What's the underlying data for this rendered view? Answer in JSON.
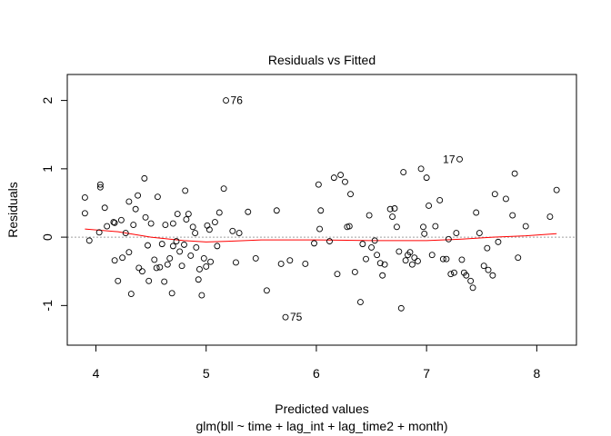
{
  "chart_data": {
    "type": "scatter",
    "title": "Residuals vs Fitted",
    "xlabel": "Predicted values",
    "subtitle": "glm(bll ~ time + lag_int + lag_time2 + month)",
    "ylabel": "Residuals",
    "xlim": [
      3.74,
      8.36
    ],
    "ylim": [
      -1.58,
      2.38
    ],
    "xticks": [
      4,
      5,
      6,
      7,
      8
    ],
    "xtick_labels": [
      "4",
      "5",
      "6",
      "7",
      "8"
    ],
    "yticks": [
      -1,
      0,
      1,
      2
    ],
    "ytick_labels": [
      "-1",
      "0",
      "1",
      "2"
    ],
    "grid": false,
    "colors": {
      "points": "#000000",
      "smooth": "#ff0000",
      "zero_line": "#a0a0a0"
    },
    "points": [
      {
        "x": 3.9,
        "y": 0.58
      },
      {
        "x": 3.9,
        "y": 0.35
      },
      {
        "x": 3.94,
        "y": -0.05
      },
      {
        "x": 4.04,
        "y": 0.77
      },
      {
        "x": 4.04,
        "y": 0.73
      },
      {
        "x": 4.03,
        "y": 0.07
      },
      {
        "x": 4.08,
        "y": 0.43
      },
      {
        "x": 4.1,
        "y": 0.16
      },
      {
        "x": 4.16,
        "y": 0.22
      },
      {
        "x": 4.17,
        "y": 0.21
      },
      {
        "x": 4.17,
        "y": -0.34
      },
      {
        "x": 4.2,
        "y": -0.64
      },
      {
        "x": 4.23,
        "y": 0.25
      },
      {
        "x": 4.24,
        "y": -0.3
      },
      {
        "x": 4.27,
        "y": 0.06
      },
      {
        "x": 4.3,
        "y": 0.52
      },
      {
        "x": 4.3,
        "y": -0.22
      },
      {
        "x": 4.32,
        "y": -0.83
      },
      {
        "x": 4.34,
        "y": 0.18
      },
      {
        "x": 4.36,
        "y": 0.41
      },
      {
        "x": 4.38,
        "y": 0.61
      },
      {
        "x": 4.39,
        "y": -0.45
      },
      {
        "x": 4.42,
        "y": -0.5
      },
      {
        "x": 4.44,
        "y": 0.86
      },
      {
        "x": 4.45,
        "y": 0.29
      },
      {
        "x": 4.47,
        "y": -0.12
      },
      {
        "x": 4.48,
        "y": -0.64
      },
      {
        "x": 4.5,
        "y": 0.2
      },
      {
        "x": 4.53,
        "y": -0.33
      },
      {
        "x": 4.55,
        "y": -0.45
      },
      {
        "x": 4.56,
        "y": 0.59
      },
      {
        "x": 4.58,
        "y": -0.44
      },
      {
        "x": 4.6,
        "y": -0.1
      },
      {
        "x": 4.62,
        "y": -0.65
      },
      {
        "x": 4.63,
        "y": 0.18
      },
      {
        "x": 4.65,
        "y": -0.4
      },
      {
        "x": 4.67,
        "y": -0.31
      },
      {
        "x": 4.69,
        "y": -0.82
      },
      {
        "x": 4.7,
        "y": 0.2
      },
      {
        "x": 4.7,
        "y": -0.13
      },
      {
        "x": 4.73,
        "y": -0.06
      },
      {
        "x": 4.74,
        "y": 0.34
      },
      {
        "x": 4.76,
        "y": -0.21
      },
      {
        "x": 4.78,
        "y": -0.42
      },
      {
        "x": 4.8,
        "y": -0.11
      },
      {
        "x": 4.81,
        "y": 0.68
      },
      {
        "x": 4.82,
        "y": 0.26
      },
      {
        "x": 4.84,
        "y": 0.34
      },
      {
        "x": 4.86,
        "y": -0.27
      },
      {
        "x": 4.88,
        "y": 0.15
      },
      {
        "x": 4.9,
        "y": 0.06
      },
      {
        "x": 4.91,
        "y": -0.15
      },
      {
        "x": 4.93,
        "y": -0.62
      },
      {
        "x": 4.94,
        "y": -0.47
      },
      {
        "x": 4.96,
        "y": -0.85
      },
      {
        "x": 4.98,
        "y": -0.31
      },
      {
        "x": 5.0,
        "y": -0.43
      },
      {
        "x": 5.01,
        "y": 0.17
      },
      {
        "x": 5.03,
        "y": 0.11
      },
      {
        "x": 5.04,
        "y": -0.36
      },
      {
        "x": 5.08,
        "y": 0.22
      },
      {
        "x": 5.1,
        "y": -0.13
      },
      {
        "x": 5.12,
        "y": 0.36
      },
      {
        "x": 5.16,
        "y": 0.71
      },
      {
        "x": 5.18,
        "y": 2.0
      },
      {
        "x": 5.24,
        "y": 0.09
      },
      {
        "x": 5.27,
        "y": -0.37
      },
      {
        "x": 5.3,
        "y": 0.06
      },
      {
        "x": 5.38,
        "y": 0.37
      },
      {
        "x": 5.45,
        "y": -0.31
      },
      {
        "x": 5.55,
        "y": -0.78
      },
      {
        "x": 5.64,
        "y": 0.39
      },
      {
        "x": 5.68,
        "y": -0.39
      },
      {
        "x": 5.72,
        "y": -1.17
      },
      {
        "x": 5.76,
        "y": -0.34
      },
      {
        "x": 5.9,
        "y": -0.39
      },
      {
        "x": 5.98,
        "y": -0.09
      },
      {
        "x": 6.02,
        "y": 0.77
      },
      {
        "x": 6.03,
        "y": 0.12
      },
      {
        "x": 6.04,
        "y": 0.39
      },
      {
        "x": 6.12,
        "y": -0.06
      },
      {
        "x": 6.16,
        "y": 0.87
      },
      {
        "x": 6.19,
        "y": -0.54
      },
      {
        "x": 6.22,
        "y": 0.91
      },
      {
        "x": 6.26,
        "y": 0.81
      },
      {
        "x": 6.28,
        "y": 0.15
      },
      {
        "x": 6.3,
        "y": 0.16
      },
      {
        "x": 6.31,
        "y": 0.63
      },
      {
        "x": 6.35,
        "y": -0.51
      },
      {
        "x": 6.4,
        "y": -0.95
      },
      {
        "x": 6.42,
        "y": -0.1
      },
      {
        "x": 6.45,
        "y": -0.32
      },
      {
        "x": 6.48,
        "y": 0.32
      },
      {
        "x": 6.5,
        "y": -0.15
      },
      {
        "x": 6.53,
        "y": -0.05
      },
      {
        "x": 6.55,
        "y": -0.26
      },
      {
        "x": 6.58,
        "y": -0.38
      },
      {
        "x": 6.6,
        "y": -0.56
      },
      {
        "x": 6.62,
        "y": -0.4
      },
      {
        "x": 6.67,
        "y": 0.41
      },
      {
        "x": 6.69,
        "y": 0.3
      },
      {
        "x": 6.71,
        "y": 0.42
      },
      {
        "x": 6.73,
        "y": 0.15
      },
      {
        "x": 6.75,
        "y": -0.21
      },
      {
        "x": 6.77,
        "y": -1.04
      },
      {
        "x": 6.79,
        "y": 0.95
      },
      {
        "x": 6.81,
        "y": -0.34
      },
      {
        "x": 6.83,
        "y": -0.26
      },
      {
        "x": 6.85,
        "y": -0.22
      },
      {
        "x": 6.87,
        "y": -0.4
      },
      {
        "x": 6.89,
        "y": -0.3
      },
      {
        "x": 6.92,
        "y": -0.35
      },
      {
        "x": 6.95,
        "y": 1.0
      },
      {
        "x": 6.97,
        "y": 0.15
      },
      {
        "x": 6.98,
        "y": 0.05
      },
      {
        "x": 7.0,
        "y": 0.87
      },
      {
        "x": 7.02,
        "y": 0.46
      },
      {
        "x": 7.05,
        "y": -0.26
      },
      {
        "x": 7.08,
        "y": 0.16
      },
      {
        "x": 7.12,
        "y": 0.54
      },
      {
        "x": 7.15,
        "y": -0.32
      },
      {
        "x": 7.18,
        "y": -0.32
      },
      {
        "x": 7.2,
        "y": -0.03
      },
      {
        "x": 7.22,
        "y": -0.54
      },
      {
        "x": 7.25,
        "y": -0.52
      },
      {
        "x": 7.27,
        "y": 0.06
      },
      {
        "x": 7.3,
        "y": 1.14
      },
      {
        "x": 7.32,
        "y": -0.33
      },
      {
        "x": 7.34,
        "y": -0.52
      },
      {
        "x": 7.36,
        "y": -0.56
      },
      {
        "x": 7.4,
        "y": -0.64
      },
      {
        "x": 7.42,
        "y": -0.74
      },
      {
        "x": 7.45,
        "y": 0.36
      },
      {
        "x": 7.48,
        "y": 0.06
      },
      {
        "x": 7.52,
        "y": -0.42
      },
      {
        "x": 7.55,
        "y": -0.16
      },
      {
        "x": 7.56,
        "y": -0.48
      },
      {
        "x": 7.6,
        "y": -0.56
      },
      {
        "x": 7.62,
        "y": 0.63
      },
      {
        "x": 7.65,
        "y": -0.07
      },
      {
        "x": 7.72,
        "y": 0.56
      },
      {
        "x": 7.78,
        "y": 0.32
      },
      {
        "x": 7.8,
        "y": 0.93
      },
      {
        "x": 7.83,
        "y": -0.3
      },
      {
        "x": 7.9,
        "y": 0.16
      },
      {
        "x": 8.12,
        "y": 0.3
      },
      {
        "x": 8.18,
        "y": 0.69
      }
    ],
    "smooth_line": [
      {
        "x": 3.9,
        "y": 0.12
      },
      {
        "x": 4.2,
        "y": 0.08
      },
      {
        "x": 4.5,
        "y": 0.0
      },
      {
        "x": 4.8,
        "y": -0.05
      },
      {
        "x": 5.0,
        "y": -0.07
      },
      {
        "x": 5.2,
        "y": -0.06
      },
      {
        "x": 5.5,
        "y": -0.04
      },
      {
        "x": 6.0,
        "y": -0.04
      },
      {
        "x": 6.5,
        "y": -0.05
      },
      {
        "x": 7.0,
        "y": -0.05
      },
      {
        "x": 7.3,
        "y": -0.03
      },
      {
        "x": 7.6,
        "y": 0.0
      },
      {
        "x": 7.9,
        "y": 0.02
      },
      {
        "x": 8.18,
        "y": 0.05
      }
    ],
    "annotations": [
      {
        "label": "76",
        "x": 5.18,
        "y": 2.0,
        "side": "right"
      },
      {
        "label": "17",
        "x": 7.3,
        "y": 1.14,
        "side": "left"
      },
      {
        "label": "75",
        "x": 5.72,
        "y": -1.17,
        "side": "right"
      }
    ]
  }
}
